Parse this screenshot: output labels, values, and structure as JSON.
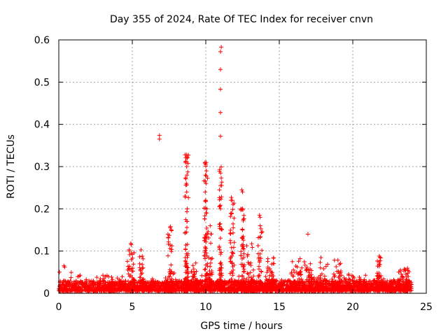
{
  "chart_data": {
    "type": "scatter",
    "title": "Day 355 of 2024, Rate Of TEC Index for receiver cnvn",
    "xlabel": "GPS time / hours",
    "ylabel": "ROTI / TECUs",
    "xlim": [
      0,
      25
    ],
    "ylim": [
      0,
      0.6
    ],
    "x_ticks": [
      "0",
      "5",
      "10",
      "15",
      "20",
      "25"
    ],
    "y_ticks": [
      "0",
      "0.1",
      "0.2",
      "0.3",
      "0.4",
      "0.5",
      "0.6"
    ],
    "grid": true,
    "marker": "+",
    "series_color": "#ff0000",
    "background_band": {
      "x_range": [
        0,
        24
      ],
      "y_min": 0.005,
      "y_max": 0.03,
      "density_per_hour": 120
    },
    "activity_bursts": [
      {
        "center": 4.9,
        "width": 0.25,
        "peak": 0.115,
        "count": 45
      },
      {
        "center": 5.6,
        "width": 0.15,
        "peak": 0.1,
        "count": 30
      },
      {
        "center": 7.6,
        "width": 0.2,
        "peak": 0.16,
        "count": 45
      },
      {
        "center": 8.7,
        "width": 0.12,
        "peak": 0.33,
        "count": 70
      },
      {
        "center": 9.2,
        "width": 0.2,
        "peak": 0.08,
        "count": 40
      },
      {
        "center": 10.0,
        "width": 0.12,
        "peak": 0.31,
        "count": 70
      },
      {
        "center": 10.3,
        "width": 0.15,
        "peak": 0.16,
        "count": 40
      },
      {
        "center": 11.0,
        "width": 0.1,
        "peak": 0.3,
        "count": 60
      },
      {
        "center": 11.8,
        "width": 0.15,
        "peak": 0.23,
        "count": 55
      },
      {
        "center": 12.5,
        "width": 0.12,
        "peak": 0.25,
        "count": 55
      },
      {
        "center": 13.0,
        "width": 0.25,
        "peak": 0.12,
        "count": 40
      },
      {
        "center": 13.7,
        "width": 0.15,
        "peak": 0.19,
        "count": 45
      },
      {
        "center": 14.4,
        "width": 0.3,
        "peak": 0.1,
        "count": 50
      },
      {
        "center": 16.2,
        "width": 0.4,
        "peak": 0.09,
        "count": 50
      },
      {
        "center": 17.0,
        "width": 0.3,
        "peak": 0.08,
        "count": 35
      },
      {
        "center": 18.0,
        "width": 0.3,
        "peak": 0.09,
        "count": 30
      },
      {
        "center": 19.0,
        "width": 0.3,
        "peak": 0.08,
        "count": 30
      },
      {
        "center": 20.0,
        "width": 0.3,
        "peak": 0.05,
        "count": 25
      },
      {
        "center": 21.8,
        "width": 0.15,
        "peak": 0.085,
        "count": 30
      },
      {
        "center": 23.5,
        "width": 0.4,
        "peak": 0.06,
        "count": 30
      }
    ],
    "notable_points": [
      {
        "x": 6.85,
        "y": 0.374
      },
      {
        "x": 6.85,
        "y": 0.365
      },
      {
        "x": 8.7,
        "y": 0.328
      },
      {
        "x": 8.75,
        "y": 0.322
      },
      {
        "x": 8.7,
        "y": 0.3
      },
      {
        "x": 8.72,
        "y": 0.28
      },
      {
        "x": 8.68,
        "y": 0.26
      },
      {
        "x": 8.7,
        "y": 0.24
      },
      {
        "x": 8.74,
        "y": 0.2
      },
      {
        "x": 8.72,
        "y": 0.17
      },
      {
        "x": 9.95,
        "y": 0.31
      },
      {
        "x": 10.0,
        "y": 0.305
      },
      {
        "x": 9.98,
        "y": 0.28
      },
      {
        "x": 10.02,
        "y": 0.26
      },
      {
        "x": 9.96,
        "y": 0.24
      },
      {
        "x": 10.0,
        "y": 0.22
      },
      {
        "x": 10.05,
        "y": 0.19
      },
      {
        "x": 11.05,
        "y": 0.583
      },
      {
        "x": 11.0,
        "y": 0.572
      },
      {
        "x": 11.0,
        "y": 0.53
      },
      {
        "x": 11.0,
        "y": 0.483
      },
      {
        "x": 11.0,
        "y": 0.428
      },
      {
        "x": 11.0,
        "y": 0.372
      },
      {
        "x": 10.95,
        "y": 0.293
      },
      {
        "x": 11.0,
        "y": 0.255
      },
      {
        "x": 11.0,
        "y": 0.2
      },
      {
        "x": 11.8,
        "y": 0.22
      },
      {
        "x": 11.85,
        "y": 0.21
      },
      {
        "x": 11.75,
        "y": 0.19
      },
      {
        "x": 12.45,
        "y": 0.245
      },
      {
        "x": 12.5,
        "y": 0.24
      },
      {
        "x": 12.5,
        "y": 0.2
      },
      {
        "x": 12.55,
        "y": 0.175
      },
      {
        "x": 12.5,
        "y": 0.15
      },
      {
        "x": 13.65,
        "y": 0.185
      },
      {
        "x": 13.7,
        "y": 0.18
      },
      {
        "x": 13.7,
        "y": 0.16
      },
      {
        "x": 7.6,
        "y": 0.158
      },
      {
        "x": 7.65,
        "y": 0.15
      },
      {
        "x": 10.3,
        "y": 0.16
      },
      {
        "x": 10.35,
        "y": 0.14
      },
      {
        "x": 16.95,
        "y": 0.14
      },
      {
        "x": 4.9,
        "y": 0.118
      },
      {
        "x": 5.6,
        "y": 0.103
      },
      {
        "x": 21.8,
        "y": 0.088
      },
      {
        "x": 21.85,
        "y": 0.085
      },
      {
        "x": 0.35,
        "y": 0.065
      },
      {
        "x": 0.4,
        "y": 0.062
      },
      {
        "x": 0.05,
        "y": 0.05
      }
    ]
  }
}
